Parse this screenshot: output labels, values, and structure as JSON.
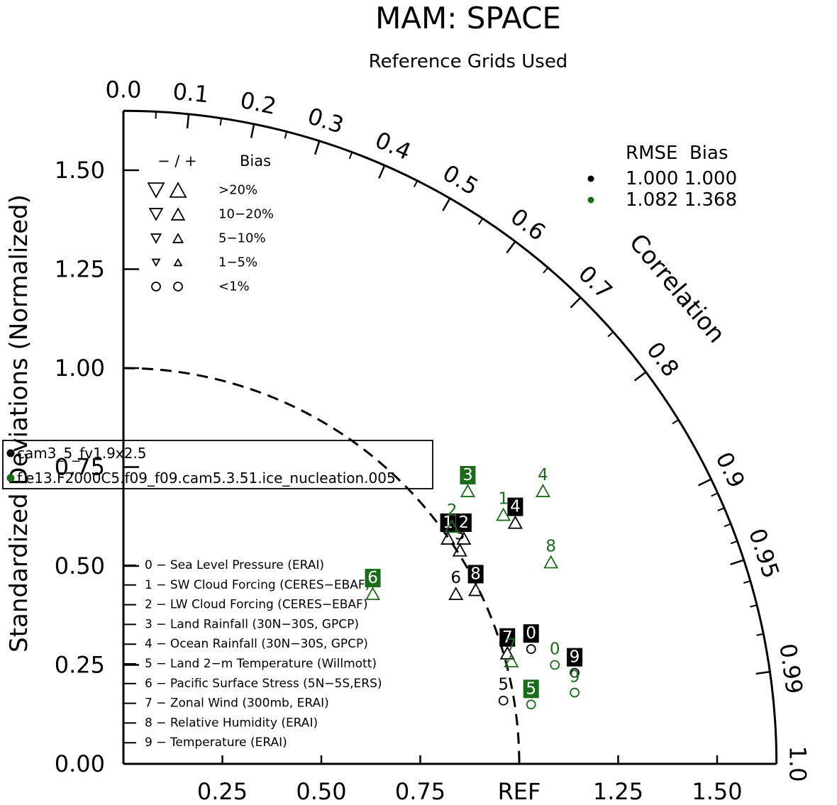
{
  "chart_data": {
    "type": "taylor-diagram",
    "title": "MAM: SPACE",
    "subtitle": "Reference Grids Used",
    "ylabel": "Standardized Deviations (Normalized)",
    "arc_label": "Correlation",
    "x_ticks": [
      "0.25",
      "0.50",
      "0.75",
      "REF",
      "1.25",
      "1.50"
    ],
    "x_tick_values": [
      0.25,
      0.5,
      0.75,
      1.0,
      1.25,
      1.5
    ],
    "y_ticks": [
      "0.00",
      "0.25",
      "0.50",
      "0.75",
      "1.00",
      "1.25",
      "1.50"
    ],
    "y_tick_values": [
      0,
      0.25,
      0.5,
      0.75,
      1.0,
      1.25,
      1.5
    ],
    "radius_max": 1.65,
    "correlation_labels": [
      "0.0",
      "0.1",
      "0.2",
      "0.3",
      "0.4",
      "0.5",
      "0.6",
      "0.7",
      "0.8",
      "0.9",
      "0.95",
      "0.99",
      "1.0"
    ],
    "correlation_values": [
      0.0,
      0.1,
      0.2,
      0.3,
      0.4,
      0.5,
      0.6,
      0.7,
      0.8,
      0.9,
      0.95,
      0.99,
      1.0
    ],
    "minor_correlation_ticks": [
      0.05,
      0.15,
      0.25,
      0.35,
      0.45,
      0.55,
      0.65,
      0.75,
      0.85,
      0.91,
      0.92,
      0.93,
      0.94,
      0.96,
      0.97,
      0.98
    ],
    "bias_legend": {
      "header_sign": "− / +",
      "header_bias": "Bias",
      "rows": [
        {
          "label": ">20%",
          "symbol": "triangle",
          "scale": 1.0
        },
        {
          "label": "10−20%",
          "symbol": "triangle",
          "scale": 0.8
        },
        {
          "label": "5−10%",
          "symbol": "triangle",
          "scale": 0.6
        },
        {
          "label": "1−5%",
          "symbol": "triangle",
          "scale": 0.45
        },
        {
          "label": "<1%",
          "symbol": "circle",
          "scale": 0.5
        }
      ]
    },
    "rmse_legend": {
      "header": "RMSE  Bias",
      "rows": [
        {
          "color": "#000000",
          "text": "1.000 1.000"
        },
        {
          "color": "#1a6b1a",
          "text": "1.082 1.368"
        }
      ]
    },
    "cases": [
      {
        "name": "cam3_5_fv1.9x2.5",
        "color": "#000000"
      },
      {
        "name": "f.e13.F2000C5.f09_f09.cam5.3.51.ice_nucleation.005",
        "color": "#1a6b1a"
      }
    ],
    "variables": [
      "0 − Sea Level Pressure (ERAI)",
      "1 − SW Cloud Forcing (CERES−EBAF)",
      "2 − LW Cloud Forcing (CERES−EBAF)",
      "3 − Land Rainfall (30N−30S, GPCP)",
      "4 − Ocean Rainfall (30N−30S, GPCP)",
      "5 − Land 2−m Temperature (Willmott)",
      "6 − Pacific Surface Stress (5N−5S,ERS)",
      "7 − Zonal Wind (300mb, ERAI)",
      "8 − Relative Humidity (ERAI)",
      "9 − Temperature (ERAI)"
    ],
    "series": [
      {
        "name": "cam3_5_fv1.9x2.5",
        "color": "#000000",
        "points": [
          {
            "id": "0",
            "x": 1.03,
            "y": 0.29,
            "marker": "circle",
            "dir": "up",
            "boxed": true
          },
          {
            "id": "1",
            "x": 0.82,
            "y": 0.57,
            "marker": "triangle",
            "dir": "up",
            "boxed": true
          },
          {
            "id": "2",
            "x": 0.86,
            "y": 0.57,
            "marker": "triangle",
            "dir": "up",
            "boxed": true
          },
          {
            "id": "3",
            "x": 0.85,
            "y": 0.54,
            "marker": "triangle",
            "dir": "up",
            "boxed": false
          },
          {
            "id": "4",
            "x": 0.99,
            "y": 0.61,
            "marker": "triangle",
            "dir": "up",
            "boxed": true
          },
          {
            "id": "5",
            "x": 0.96,
            "y": 0.16,
            "marker": "circle",
            "dir": "up",
            "boxed": false
          },
          {
            "id": "6",
            "x": 0.84,
            "y": 0.43,
            "marker": "triangle",
            "dir": "up",
            "boxed": false
          },
          {
            "id": "7",
            "x": 0.97,
            "y": 0.28,
            "marker": "triangle",
            "dir": "up",
            "boxed": true
          },
          {
            "id": "8",
            "x": 0.89,
            "y": 0.44,
            "marker": "triangle",
            "dir": "up",
            "boxed": true
          },
          {
            "id": "9",
            "x": 1.14,
            "y": 0.23,
            "marker": "circle",
            "dir": "up",
            "boxed": true
          }
        ]
      },
      {
        "name": "f.e13.F2000C5.f09_f09.cam5.3.51.ice_nucleation.005",
        "color": "#1a6b1a",
        "points": [
          {
            "id": "0",
            "x": 1.09,
            "y": 0.25,
            "marker": "circle",
            "dir": "up",
            "boxed": false
          },
          {
            "id": "1",
            "x": 0.96,
            "y": 0.63,
            "marker": "triangle",
            "dir": "up",
            "boxed": false
          },
          {
            "id": "2",
            "x": 0.83,
            "y": 0.6,
            "marker": "triangle",
            "dir": "up",
            "boxed": false
          },
          {
            "id": "3",
            "x": 0.87,
            "y": 0.69,
            "marker": "triangle",
            "dir": "up",
            "boxed": true
          },
          {
            "id": "4",
            "x": 1.06,
            "y": 0.69,
            "marker": "triangle",
            "dir": "up",
            "boxed": false
          },
          {
            "id": "5",
            "x": 1.03,
            "y": 0.15,
            "marker": "circle",
            "dir": "up",
            "boxed": true
          },
          {
            "id": "6",
            "x": 0.63,
            "y": 0.43,
            "marker": "triangle",
            "dir": "up",
            "boxed": true
          },
          {
            "id": "7",
            "x": 0.98,
            "y": 0.26,
            "marker": "triangle",
            "dir": "up",
            "boxed": false
          },
          {
            "id": "8",
            "x": 1.08,
            "y": 0.51,
            "marker": "triangle",
            "dir": "up",
            "boxed": false
          },
          {
            "id": "9",
            "x": 1.14,
            "y": 0.18,
            "marker": "circle",
            "dir": "up",
            "boxed": false
          }
        ]
      }
    ]
  }
}
